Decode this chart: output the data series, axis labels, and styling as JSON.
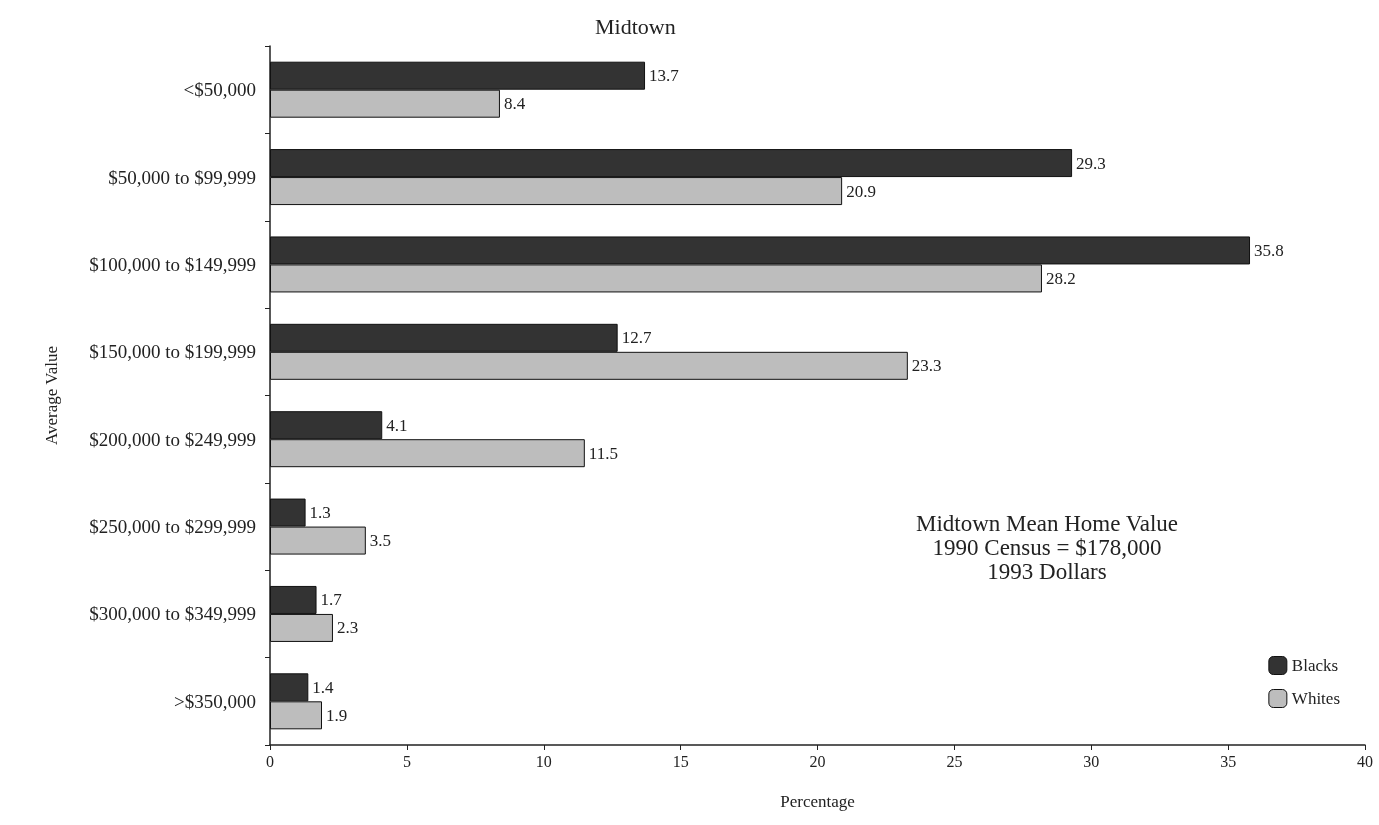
{
  "chart_data": {
    "type": "bar",
    "orientation": "horizontal",
    "title": "Midtown",
    "xlabel": "Percentage",
    "ylabel": "Average Value",
    "categories": [
      "<$50,000",
      "$50,000 to $99,999",
      "$100,000 to $149,999",
      "$150,000 to $199,999",
      "$200,000 to $249,999",
      "$250,000 to $299,999",
      "$300,000 to $349,999",
      ">$350,000"
    ],
    "series": [
      {
        "name": "Blacks",
        "color": "#333333",
        "values": [
          13.7,
          29.3,
          35.8,
          12.7,
          4.1,
          1.3,
          1.7,
          1.4
        ]
      },
      {
        "name": "Whites",
        "color": "#bdbdbd",
        "values": [
          8.4,
          20.9,
          28.2,
          23.3,
          11.5,
          3.5,
          2.3,
          1.9
        ]
      }
    ],
    "xlim": [
      0,
      40
    ],
    "xticks": [
      0,
      5,
      10,
      15,
      20,
      25,
      30,
      35,
      40
    ],
    "grid": false,
    "legend": "bottom right",
    "data_labels": true,
    "annotations": [
      "Midtown Mean Home Value",
      "1990 Census = $178,000",
      "1993 Dollars"
    ]
  }
}
